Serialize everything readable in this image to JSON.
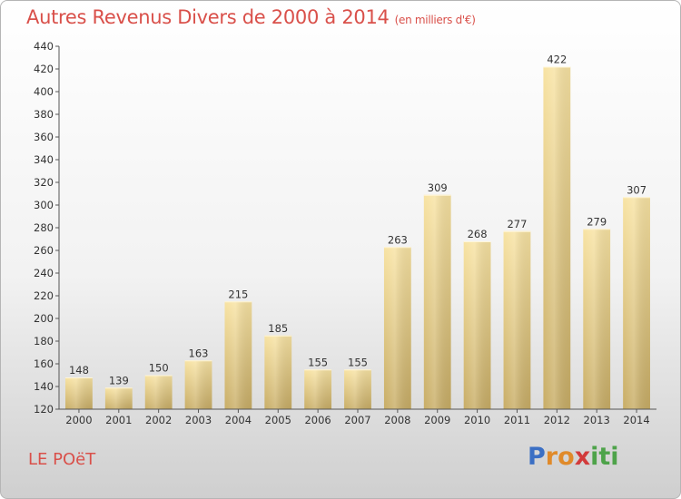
{
  "chart_data": {
    "type": "bar",
    "title": "Autres Revenus Divers de 2000 à 2014",
    "subtitle": "(en milliers d'€)",
    "categories": [
      "2000",
      "2001",
      "2002",
      "2003",
      "2004",
      "2005",
      "2006",
      "2007",
      "2008",
      "2009",
      "2010",
      "2011",
      "2012",
      "2013",
      "2014"
    ],
    "values": [
      148,
      139,
      150,
      163,
      215,
      185,
      155,
      155,
      263,
      309,
      268,
      277,
      422,
      279,
      307
    ],
    "ylim": [
      120,
      440
    ],
    "yticks": [
      120,
      140,
      160,
      180,
      200,
      220,
      240,
      260,
      280,
      300,
      320,
      340,
      360,
      380,
      400,
      420,
      440
    ],
    "grid": false,
    "data_labels": true,
    "bar_color": "#e9cf86"
  },
  "location": "LE POëT",
  "logo": {
    "letters": [
      "P",
      "r",
      "o",
      "x",
      "i",
      "t",
      "i"
    ],
    "colors": [
      "#3b6fc4",
      "#e08a2a",
      "#e08a2a",
      "#d23b3b",
      "#4ea34a",
      "#4ea34a",
      "#4ea34a"
    ]
  }
}
